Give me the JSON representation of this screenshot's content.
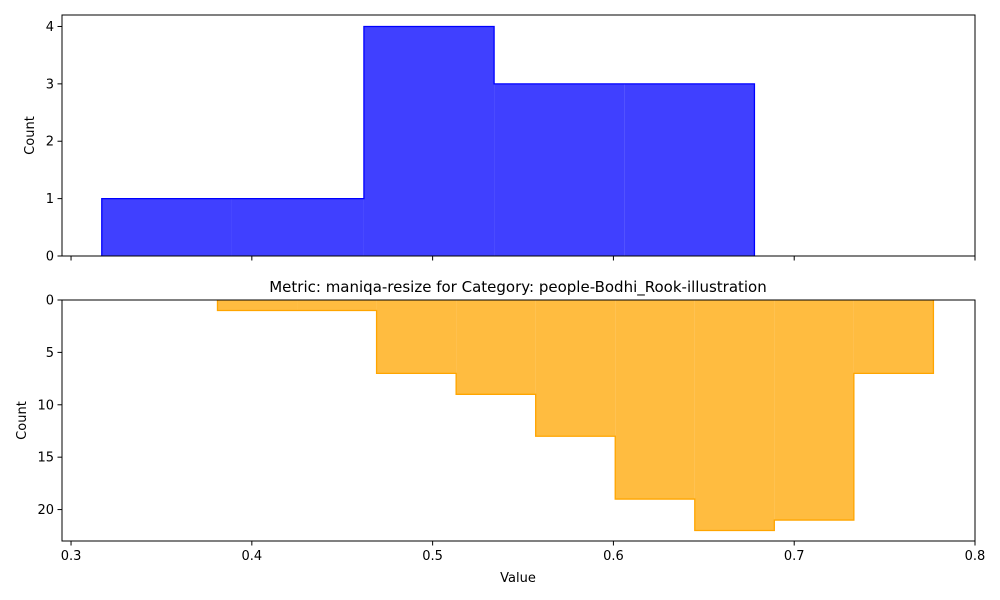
{
  "chart_data": [
    {
      "type": "histogram",
      "panel": "top",
      "title": "",
      "xlabel": "",
      "ylabel": "Count",
      "xlim": [
        0.295,
        0.8
      ],
      "ylim": [
        0,
        4.2
      ],
      "y_inverted": false,
      "x_ticks": [
        0.3,
        0.4,
        0.5,
        0.6,
        0.7,
        0.8
      ],
      "x_tick_labels_shown": false,
      "y_ticks": [
        0,
        1,
        2,
        3,
        4
      ],
      "y_tick_labels": [
        "0",
        "1",
        "2",
        "3",
        "4"
      ],
      "color": "#0000ff",
      "fill_opacity": 0.75,
      "bin_edges": [
        0.317,
        0.389,
        0.462,
        0.534,
        0.606,
        0.678
      ],
      "counts": [
        1,
        1,
        4,
        3,
        3
      ]
    },
    {
      "type": "histogram",
      "panel": "bottom",
      "title": "Metric: maniqa-resize for Category: people-Bodhi_Rook-illustration",
      "xlabel": "Value",
      "ylabel": "Count",
      "xlim": [
        0.295,
        0.8
      ],
      "ylim": [
        0,
        23
      ],
      "y_inverted": true,
      "x_ticks": [
        0.3,
        0.4,
        0.5,
        0.6,
        0.7,
        0.8
      ],
      "x_tick_labels": [
        "0.3",
        "0.4",
        "0.5",
        "0.6",
        "0.7",
        "0.8"
      ],
      "y_ticks": [
        0,
        5,
        10,
        15,
        20
      ],
      "y_tick_labels": [
        "0",
        "5",
        "10",
        "15",
        "20"
      ],
      "color": "#ffa500",
      "fill_opacity": 0.75,
      "bin_edges": [
        0.381,
        0.425,
        0.469,
        0.513,
        0.557,
        0.601,
        0.645,
        0.689,
        0.733,
        0.777
      ],
      "counts": [
        1,
        1,
        7,
        9,
        13,
        19,
        22,
        21,
        7
      ]
    }
  ]
}
